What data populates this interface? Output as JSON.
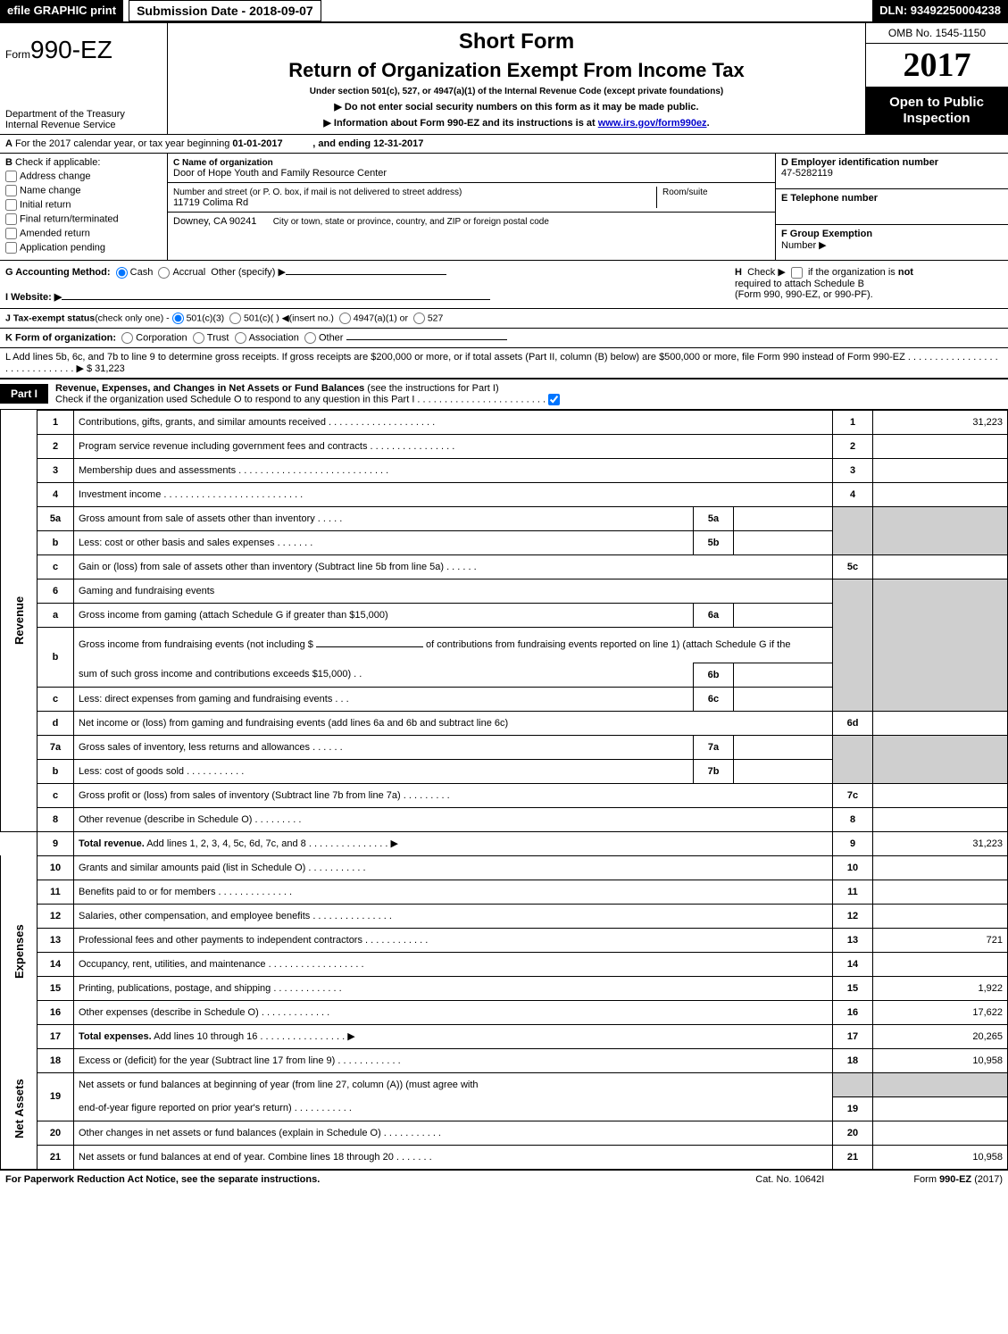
{
  "topbar": {
    "efile_label": "efile GRAPHIC print",
    "submission_label": "Submission Date - 2018-09-07",
    "dln": "DLN: 93492250004238"
  },
  "header": {
    "form_prefix": "Form",
    "form_number": "990-EZ",
    "short_form": "Short Form",
    "return_title": "Return of Organization Exempt From Income Tax",
    "under_section": "Under section 501(c), 527, or 4947(a)(1) of the Internal Revenue Code (except private foundations)",
    "note_ssn": "▶ Do not enter social security numbers on this form as it may be made public.",
    "note_info_prefix": "▶ Information about Form 990-EZ and its instructions is at ",
    "note_info_link": "www.irs.gov/form990ez",
    "note_info_suffix": ".",
    "dept1": "Department of the Treasury",
    "dept2": "Internal Revenue Service",
    "omb": "OMB No. 1545-1150",
    "year": "2017",
    "open1": "Open to Public",
    "open2": "Inspection"
  },
  "lineA": {
    "text_pre": "For the 2017 calendar year, or tax year beginning ",
    "begin": "01-01-2017",
    "text_mid": ", and ending ",
    "end": "12-31-2017"
  },
  "boxB": {
    "title": "Check if applicable:",
    "opts": {
      "addr": "Address change",
      "name": "Name change",
      "init": "Initial return",
      "final": "Final return/terminated",
      "amend": "Amended return",
      "app": "Application pending"
    }
  },
  "boxC": {
    "name_label": "C Name of organization",
    "name_val": "Door of Hope Youth and Family Resource Center",
    "street_label": "Number and street (or P. O. box, if mail is not delivered to street address)",
    "room_label": "Room/suite",
    "street_val": "11719 Colima Rd",
    "city_label": "City or town, state or province, country, and ZIP or foreign postal code",
    "city_val": "Downey, CA  90241"
  },
  "boxD": {
    "label": "D Employer identification number",
    "val": "47-5282119"
  },
  "boxE": {
    "label": "E Telephone number",
    "val": ""
  },
  "boxF": {
    "label": "F Group Exemption",
    "label2": "Number   ▶",
    "val": ""
  },
  "rowGH": {
    "G_label": "G Accounting Method:",
    "G_cash": "Cash",
    "G_accrual": "Accrual",
    "G_other": "Other (specify) ▶",
    "I_label": "I Website: ▶",
    "H_label": "Check ▶",
    "H_text1": "if the organization is ",
    "H_not": "not",
    "H_text2": "required to attach Schedule B",
    "H_text3": "(Form 990, 990-EZ, or 990-PF)."
  },
  "rowJ": {
    "label": "J Tax-exempt status",
    "rest": "(check only one) - ",
    "opt1": "501(c)(3)",
    "opt2": "501(c)(  ) ◀(insert no.)",
    "opt3": "4947(a)(1) or",
    "opt4": "527"
  },
  "rowK": {
    "label": "K Form of organization:",
    "o1": "Corporation",
    "o2": "Trust",
    "o3": "Association",
    "o4": "Other"
  },
  "rowL": {
    "text": "L Add lines 5b, 6c, and 7b to line 9 to determine gross receipts. If gross receipts are $200,000 or more, or if total assets (Part II, column (B) below) are $500,000 or more, file Form 990 instead of Form 990-EZ  .  .  .  .  .  .  .  .  .  .  .  .  .  .  .  .  .  .  .  .  .  .  .  .  .  .  .  .  .  .  ▶ ",
    "val": "$ 31,223"
  },
  "partI": {
    "tag": "Part I",
    "title": "Revenue, Expenses, and Changes in Net Assets or Fund Balances ",
    "instr": "(see the instructions for Part I)",
    "check_line": "Check if the organization used Schedule O to respond to any question in this Part I .  .  .  .  .  .  .  .  .  .  .  .  .  .  .  .  .  .  .  .  .  .  .  ."
  },
  "sections": {
    "rev": "Revenue",
    "exp": "Expenses",
    "net": "Net Assets"
  },
  "rows": {
    "r1": {
      "n": "1",
      "d": "Contributions, gifts, grants, and similar amounts received .  .  .  .  .  .  .  .  .  .  .  .  .  .  .  .  .  .  .  .",
      "num": "1",
      "val": "31,223"
    },
    "r2": {
      "n": "2",
      "d": "Program service revenue including government fees and contracts .  .  .  .  .  .  .  .  .  .  .  .  .  .  .  .",
      "num": "2",
      "val": ""
    },
    "r3": {
      "n": "3",
      "d": "Membership dues and assessments .  .  .  .  .  .  .  .  .  .  .  .  .  .  .  .  .  .  .  .  .  .  .  .  .  .  .  .",
      "num": "3",
      "val": ""
    },
    "r4": {
      "n": "4",
      "d": "Investment income .  .  .  .  .  .  .  .  .  .  .  .  .  .  .  .  .  .  .  .  .  .  .  .  .  .",
      "num": "4",
      "val": ""
    },
    "r5a": {
      "n": "5a",
      "d": "Gross amount from sale of assets other than inventory .  .  .  .  .",
      "sub": "5a"
    },
    "r5b": {
      "n": "b",
      "d": "Less: cost or other basis and sales expenses .  .  .  .  .  .  .",
      "sub": "5b"
    },
    "r5c": {
      "n": "c",
      "d": "Gain or (loss) from sale of assets other than inventory (Subtract line 5b from line 5a)           .   .   .   .   .   .",
      "num": "5c",
      "val": ""
    },
    "r6": {
      "n": "6",
      "d": "Gaming and fundraising events"
    },
    "r6a": {
      "n": "a",
      "d": "Gross income from gaming (attach Schedule G if greater than $15,000)",
      "sub": "6a"
    },
    "r6b": {
      "n": "b",
      "d1": "Gross income from fundraising events (not including $ ",
      "d2": " of contributions from fundraising events reported on line 1) (attach Schedule G if the",
      "d3": "sum of such gross income and contributions exceeds $15,000)       .   .",
      "sub": "6b"
    },
    "r6c": {
      "n": "c",
      "d": "Less: direct expenses from gaming and fundraising events       .   .   .",
      "sub": "6c"
    },
    "r6d": {
      "n": "d",
      "d": "Net income or (loss) from gaming and fundraising events (add lines 6a and 6b and subtract line 6c)",
      "num": "6d",
      "val": ""
    },
    "r7a": {
      "n": "7a",
      "d": "Gross sales of inventory, less returns and allowances          .   .   .   .   .   .",
      "sub": "7a"
    },
    "r7b": {
      "n": "b",
      "d": "Less: cost of goods sold                .   .   .   .   .   .   .   .   .   .   .",
      "sub": "7b"
    },
    "r7c": {
      "n": "c",
      "d": "Gross profit or (loss) from sales of inventory (Subtract line 7b from line 7a)         .   .   .   .   .   .   .   .   .",
      "num": "7c",
      "val": ""
    },
    "r8": {
      "n": "8",
      "d": "Other revenue (describe in Schedule O)                               .   .   .   .   .   .   .   .   .",
      "num": "8",
      "val": ""
    },
    "r9": {
      "n": "9",
      "d": "<b>Total revenue.</b> Add lines 1, 2, 3, 4, 5c, 6d, 7c, and 8        .   .   .   .   .   .   .   .   .   .   .   .   .   .   .   ▶",
      "num": "9",
      "val": "31,223"
    },
    "r10": {
      "n": "10",
      "d": "Grants and similar amounts paid (list in Schedule O)                .   .   .   .   .   .   .   .   .   .   .",
      "num": "10",
      "val": ""
    },
    "r11": {
      "n": "11",
      "d": "Benefits paid to or for members                        .   .   .   .   .   .   .   .   .   .   .   .   .   .",
      "num": "11",
      "val": ""
    },
    "r12": {
      "n": "12",
      "d": "Salaries, other compensation, and employee benefits        .   .   .   .   .   .   .   .   .   .   .   .   .   .   .",
      "num": "12",
      "val": ""
    },
    "r13": {
      "n": "13",
      "d": "Professional fees and other payments to independent contractors    .   .   .   .   .   .   .   .   .   .   .   .",
      "num": "13",
      "val": "721"
    },
    "r14": {
      "n": "14",
      "d": "Occupancy, rent, utilities, and maintenance       .   .   .   .   .   .   .   .   .   .   .   .   .   .   .   .   .   .",
      "num": "14",
      "val": ""
    },
    "r15": {
      "n": "15",
      "d": "Printing, publications, postage, and shipping              .   .   .   .   .   .   .   .   .   .   .   .   .",
      "num": "15",
      "val": "1,922"
    },
    "r16": {
      "n": "16",
      "d": "Other expenses (describe in Schedule O)                 .   .   .   .   .   .   .   .   .   .   .   .   .",
      "num": "16",
      "val": "17,622"
    },
    "r17": {
      "n": "17",
      "d": "<b>Total expenses.</b> Add lines 10 through 16          .   .   .   .   .   .   .   .   .   .   .   .   .   .   .   .   ▶",
      "num": "17",
      "val": "20,265"
    },
    "r18": {
      "n": "18",
      "d": "Excess or (deficit) for the year (Subtract line 17 from line 9)        .   .   .   .   .   .   .   .   .   .   .   .",
      "num": "18",
      "val": "10,958"
    },
    "r19": {
      "n": "19",
      "d": "Net assets or fund balances at beginning of year (from line 27, column (A)) (must agree with",
      "d2": "end-of-year figure reported on prior year's return)             .   .   .   .   .   .   .   .   .   .   .",
      "num": "19",
      "val": ""
    },
    "r20": {
      "n": "20",
      "d": "Other changes in net assets or fund balances (explain in Schedule O)    .   .   .   .   .   .   .   .   .   .   .",
      "num": "20",
      "val": ""
    },
    "r21": {
      "n": "21",
      "d": "Net assets or fund balances at end of year. Combine lines 18 through 20      .   .   .   .   .   .   .",
      "num": "21",
      "val": "10,958"
    }
  },
  "footer": {
    "paperwork": "For Paperwork Reduction Act Notice, see the separate instructions.",
    "catno": "Cat. No. 10642I",
    "formref": "Form 990-EZ (2017)"
  },
  "colors": {
    "grey": "#cfcfcf",
    "link": "#0000cc"
  }
}
